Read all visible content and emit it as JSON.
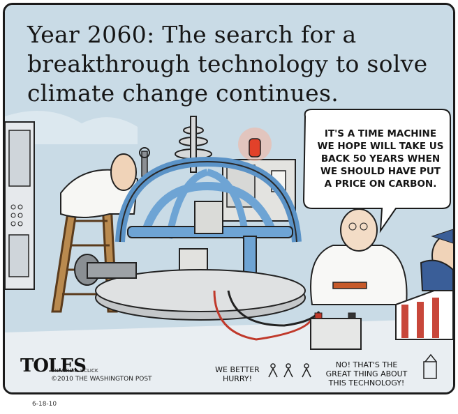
{
  "caption": {
    "line1": "Year 2060: The search for a",
    "line2": "breakthrough technology to solve",
    "line3": "climate change continues."
  },
  "speech_bubble": {
    "line1": "IT'S A TIME MACHINE",
    "line2": "WE HOPE WILL TAKE US",
    "line3": "BACK 50 YEARS WHEN",
    "line4": "WE SHOULD HAVE PUT",
    "line5": "A PRICE ON CARBON."
  },
  "small_dialogue": {
    "left_line1": "WE BETTER",
    "left_line2": "HURRY!",
    "right_line1": "NO! THAT'S THE",
    "right_line2": "GREAT THING ABOUT",
    "right_line3": "THIS TECHNOLOGY!"
  },
  "credits": {
    "signature": "TOLES",
    "syndicate": "UNIVERSAL UCLICK",
    "copyright": "©2010 THE WASHINGTON POST",
    "date": "6-18-10"
  },
  "colors": {
    "sky": "#c9dbe6",
    "machine_blue": "#5b93c7",
    "beacon": "#e2412a",
    "stripe_red": "#c8473a"
  }
}
